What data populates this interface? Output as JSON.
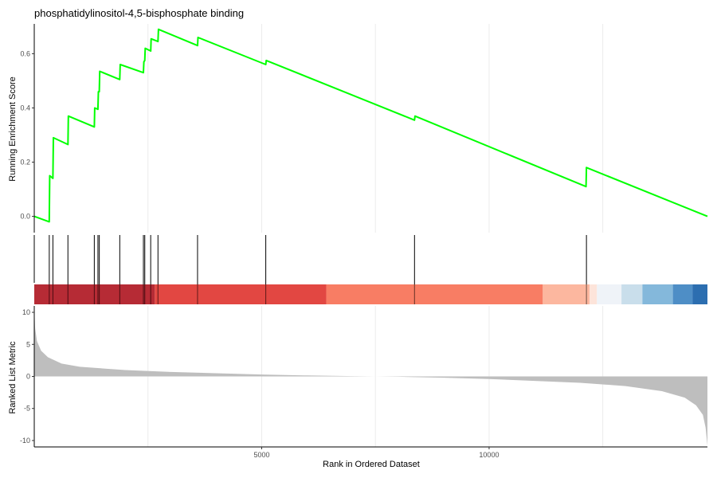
{
  "chart_data": {
    "type": "line",
    "title": "phosphatidylinositol-4,5-bisphosphate binding",
    "xlabel": "Rank in Ordered Dataset",
    "xlim": [
      0,
      14800
    ],
    "x_ticks": [
      5000,
      10000
    ],
    "top_panel": {
      "ylabel": "Running Enrichment Score",
      "ylim": [
        -0.06,
        0.71
      ],
      "y_ticks": [
        "0.0",
        "0.2",
        "0.4",
        "0.6"
      ],
      "line_color": "#00ff00",
      "series": [
        {
          "points": [
            [
              0,
              0.0
            ],
            [
              330,
              -0.02
            ],
            [
              340,
              0.15
            ],
            [
              410,
              0.14
            ],
            [
              420,
              0.29
            ],
            [
              740,
              0.265
            ],
            [
              750,
              0.37
            ],
            [
              1320,
              0.33
            ],
            [
              1330,
              0.4
            ],
            [
              1400,
              0.395
            ],
            [
              1410,
              0.46
            ],
            [
              1430,
              0.46
            ],
            [
              1440,
              0.535
            ],
            [
              1880,
              0.505
            ],
            [
              1890,
              0.56
            ],
            [
              2400,
              0.53
            ],
            [
              2410,
              0.57
            ],
            [
              2430,
              0.575
            ],
            [
              2440,
              0.62
            ],
            [
              2560,
              0.61
            ],
            [
              2570,
              0.655
            ],
            [
              2720,
              0.645
            ],
            [
              2730,
              0.69
            ],
            [
              3590,
              0.63
            ],
            [
              3600,
              0.66
            ],
            [
              5090,
              0.56
            ],
            [
              5100,
              0.575
            ],
            [
              8360,
              0.355
            ],
            [
              8370,
              0.37
            ],
            [
              12130,
              0.11
            ],
            [
              12140,
              0.18
            ],
            [
              14800,
              0.0
            ]
          ]
        }
      ]
    },
    "hit_ranks": [
      330,
      410,
      740,
      1320,
      1400,
      1430,
      1880,
      2400,
      2430,
      2560,
      2720,
      3590,
      5090,
      8360,
      12140
    ],
    "color_bar": [
      {
        "from": 0,
        "to": 2650,
        "color": "#b2202a"
      },
      {
        "from": 2650,
        "to": 6420,
        "color": "#e03d38"
      },
      {
        "from": 6420,
        "to": 11180,
        "color": "#f8765c"
      },
      {
        "from": 11180,
        "to": 12210,
        "color": "#fcb39a"
      },
      {
        "from": 12210,
        "to": 12370,
        "color": "#fde3d8"
      },
      {
        "from": 12370,
        "to": 12910,
        "color": "#eef2f8"
      },
      {
        "from": 12910,
        "to": 13370,
        "color": "#c6dcea"
      },
      {
        "from": 13370,
        "to": 14040,
        "color": "#7db4d9"
      },
      {
        "from": 14040,
        "to": 14470,
        "color": "#4588c3"
      },
      {
        "from": 14470,
        "to": 14800,
        "color": "#2166ac"
      }
    ],
    "bottom_panel": {
      "ylabel": "Ranked List Metric",
      "ylim": [
        -11,
        11
      ],
      "y_ticks": [
        "10",
        "5",
        "0",
        "-5",
        "-10"
      ],
      "fill_color": "#bebebe",
      "series": [
        {
          "points": [
            [
              0,
              10.8
            ],
            [
              20,
              7.5
            ],
            [
              60,
              5.5
            ],
            [
              150,
              4.0
            ],
            [
              300,
              3.0
            ],
            [
              600,
              2.0
            ],
            [
              1000,
              1.5
            ],
            [
              2000,
              1.0
            ],
            [
              3000,
              0.7
            ],
            [
              4000,
              0.5
            ],
            [
              5000,
              0.3
            ],
            [
              6000,
              0.15
            ],
            [
              7000,
              0.05
            ],
            [
              7500,
              0.0
            ],
            [
              8000,
              -0.05
            ],
            [
              9000,
              -0.2
            ],
            [
              10000,
              -0.4
            ],
            [
              11000,
              -0.7
            ],
            [
              12000,
              -1.0
            ],
            [
              13000,
              -1.5
            ],
            [
              13800,
              -2.3
            ],
            [
              14300,
              -3.3
            ],
            [
              14550,
              -4.5
            ],
            [
              14700,
              -6.0
            ],
            [
              14760,
              -8.0
            ],
            [
              14800,
              -10.8
            ]
          ]
        }
      ]
    }
  }
}
